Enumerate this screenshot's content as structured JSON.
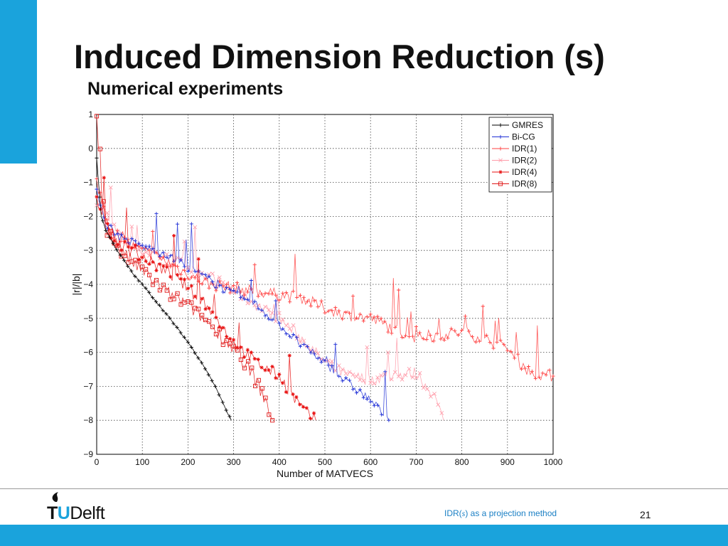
{
  "slide": {
    "title": "Induced Dimension Reduction (s)",
    "subtitle": "Numerical experiments",
    "footer_prefix": "IDR(",
    "footer_var": "s",
    "footer_suffix": ") as a projection method",
    "page_number": "21",
    "logo_tu": "T",
    "logo_u": "U",
    "logo_delft": "Delft",
    "accent_color": "#1aa3dc"
  },
  "chart_data": {
    "type": "line",
    "title": "",
    "xlabel": "Number of MATVECS",
    "ylabel": "|r|/|b|",
    "xlim": [
      0,
      1000
    ],
    "ylim": [
      -9,
      1
    ],
    "xticks": [
      0,
      100,
      200,
      300,
      400,
      500,
      600,
      700,
      800,
      900,
      1000
    ],
    "yticks": [
      1,
      0,
      -1,
      -2,
      -3,
      -4,
      -5,
      -6,
      -7,
      -8,
      -9
    ],
    "grid": true,
    "legend_position": "top-right",
    "series": [
      {
        "name": "GMRES",
        "color": "#000000",
        "marker": "+",
        "x": [
          0,
          10,
          20,
          40,
          60,
          80,
          100,
          130,
          160,
          200,
          230,
          260,
          280,
          295
        ],
        "y": [
          -0.3,
          -2.0,
          -2.4,
          -2.9,
          -3.3,
          -3.7,
          -4.0,
          -4.5,
          -5.0,
          -5.7,
          -6.3,
          -7.0,
          -7.6,
          -8.0
        ]
      },
      {
        "name": "Bi-CG",
        "color": "#1f2fd6",
        "marker": "+",
        "x": [
          0,
          20,
          50,
          100,
          150,
          200,
          250,
          300,
          350,
          400,
          450,
          500,
          550,
          600,
          640
        ],
        "y": [
          -1.2,
          -2.2,
          -2.6,
          -2.9,
          -3.1,
          -3.5,
          -3.9,
          -4.3,
          -4.6,
          -5.2,
          -5.8,
          -6.3,
          -6.9,
          -7.4,
          -8.0
        ]
      },
      {
        "name": "IDR(1)",
        "color": "#ff4040",
        "marker": "+",
        "x": [
          0,
          30,
          80,
          150,
          200,
          250,
          300,
          350,
          400,
          450,
          500,
          550,
          600,
          650,
          700,
          750,
          800,
          850,
          900,
          950,
          1000
        ],
        "y": [
          -1.0,
          -2.4,
          -2.9,
          -3.3,
          -3.7,
          -4.0,
          -4.1,
          -4.2,
          -4.3,
          -4.4,
          -4.7,
          -4.9,
          -5.0,
          -5.3,
          -5.6,
          -5.5,
          -5.4,
          -5.6,
          -5.9,
          -6.6,
          -6.7
        ]
      },
      {
        "name": "IDR(2)",
        "color": "#ff9aa8",
        "marker": "x",
        "x": [
          0,
          50,
          100,
          150,
          200,
          250,
          300,
          350,
          400,
          450,
          500,
          550,
          600,
          650,
          700,
          740,
          760
        ],
        "y": [
          -1.5,
          -2.6,
          -3.0,
          -3.2,
          -3.5,
          -3.8,
          -4.2,
          -4.6,
          -5.0,
          -5.6,
          -6.3,
          -6.7,
          -6.8,
          -6.7,
          -6.6,
          -7.3,
          -8.0
        ]
      },
      {
        "name": "IDR(4)",
        "color": "#e81010",
        "marker": "*",
        "x": [
          0,
          20,
          50,
          100,
          150,
          200,
          250,
          300,
          350,
          400,
          430,
          460,
          480
        ],
        "y": [
          -1.4,
          -2.3,
          -2.8,
          -3.2,
          -3.6,
          -4.1,
          -4.8,
          -5.7,
          -6.3,
          -6.7,
          -7.3,
          -7.8,
          -8.0
        ]
      },
      {
        "name": "IDR(8)",
        "color": "#e01818",
        "marker": "s",
        "x": [
          0,
          15,
          50,
          100,
          150,
          200,
          250,
          300,
          340,
          370,
          385
        ],
        "y": [
          0.9,
          -2.2,
          -3.0,
          -3.6,
          -4.2,
          -4.6,
          -5.2,
          -5.9,
          -6.6,
          -7.4,
          -8.0
        ]
      }
    ]
  }
}
